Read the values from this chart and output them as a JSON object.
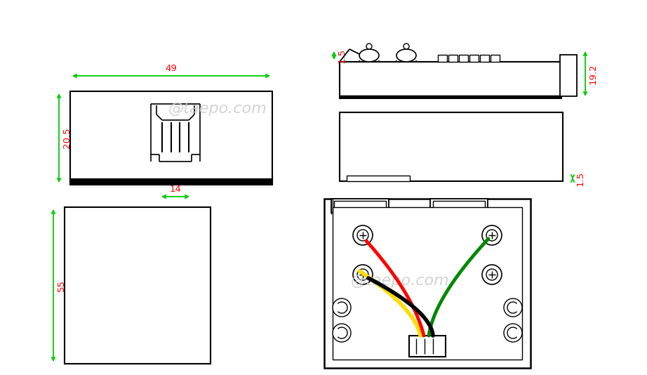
{
  "bg_color": "#ffffff",
  "line_color": "#000000",
  "dim_color": "#00cc00",
  "dim_text_color": "#ff0000",
  "watermark_text": "@taepo.com",
  "watermark_color": "#cccccc",
  "wire_colors": [
    "#ffdd00",
    "#ff0000",
    "#008800",
    "#000000"
  ],
  "dims": {
    "d49": "49",
    "d20_5": "20.5",
    "d14": "14",
    "d1_5a": "1.5",
    "d19_2": "19.2",
    "d1_5b": "1.5",
    "d55": "55"
  }
}
